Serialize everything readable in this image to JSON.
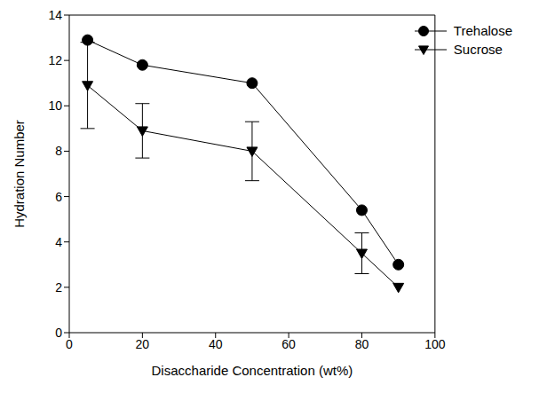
{
  "chart_data": {
    "type": "line",
    "xlabel": "Disaccharide Concentration (wt%)",
    "ylabel": "Hydration Number",
    "x": [
      5,
      20,
      50,
      80,
      90
    ],
    "series": [
      {
        "name": "Trehalose",
        "color": "#000000",
        "marker": "circle",
        "line_style": "solid",
        "values": [
          12.9,
          11.8,
          11.0,
          5.4,
          3.0
        ]
      },
      {
        "name": "Sucrose",
        "color": "#000000",
        "marker": "triangle-down",
        "line_style": "solid",
        "values": [
          10.9,
          8.9,
          8.0,
          3.5,
          2.0
        ],
        "errors": [
          1.9,
          1.2,
          1.3,
          0.9,
          0
        ]
      }
    ],
    "xlim": [
      0,
      100
    ],
    "xticks": [
      0,
      20,
      40,
      60,
      80,
      100
    ],
    "ylim": [
      0,
      14
    ],
    "yticks": [
      0,
      2,
      4,
      6,
      8,
      10,
      12,
      14
    ],
    "grid": false,
    "legend": "upper right"
  }
}
